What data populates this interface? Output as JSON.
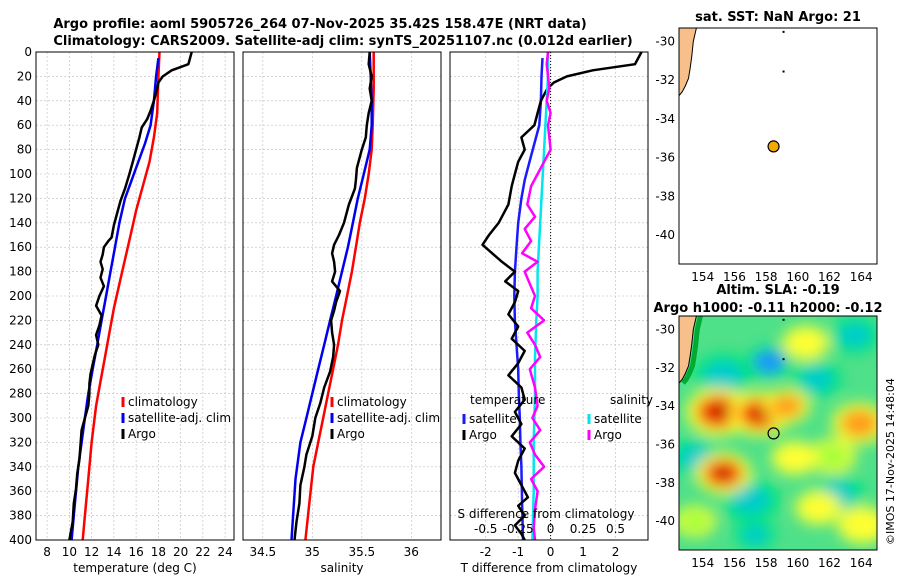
{
  "header": {
    "title_line1": "Argo profile: aoml 5905726_264 07-Nov-2025 35.42S 158.47E (NRT data)",
    "title_line2": "Climatology: CARS2009. Satellite-adj clim: synTS_20251107.nc (0.012d earlier)"
  },
  "colors": {
    "climatology": "#ff0000",
    "satellite": "#0000ee",
    "argo": "#000000",
    "t_satellite": "#1a1aff",
    "s_satellite": "#00e5ee",
    "s_argo": "#ff00ff",
    "land": "#f7c08a",
    "grid": "#bdbdbd"
  },
  "chart_data": [
    {
      "id": "temperature",
      "type": "line",
      "xlabel": "temperature (deg C)",
      "ylabel": "",
      "xlim": [
        7,
        24.8
      ],
      "ylim": [
        400,
        0
      ],
      "xticks": [
        8,
        10,
        12,
        14,
        16,
        18,
        20,
        22,
        24
      ],
      "yticks": [
        0,
        20,
        40,
        60,
        80,
        100,
        120,
        140,
        160,
        180,
        200,
        220,
        240,
        260,
        280,
        300,
        320,
        340,
        360,
        380,
        400
      ],
      "grid": true,
      "legend": [
        "climatology",
        "satellite-adj. clim",
        "Argo"
      ],
      "series": [
        {
          "name": "climatology",
          "color": "#ff0000",
          "x": [
            18.1,
            18.0,
            17.9,
            17.6,
            17.2,
            16.6,
            16.0,
            15.5,
            15.0,
            14.5,
            14.0,
            13.6,
            13.2,
            12.8,
            12.4,
            12.0,
            11.7,
            11.4,
            11.2
          ],
          "y": [
            0,
            20,
            50,
            70,
            90,
            110,
            130,
            150,
            170,
            190,
            210,
            230,
            250,
            270,
            290,
            320,
            350,
            380,
            400
          ]
        },
        {
          "name": "satellite-adj. clim",
          "color": "#0000ee",
          "x": [
            18.0,
            17.8,
            17.6,
            17.3,
            16.8,
            16.2,
            15.6,
            15.0,
            14.5,
            14.1,
            13.7,
            13.3,
            12.9,
            12.5,
            12.1,
            11.7,
            11.4,
            11.1,
            10.8,
            10.5,
            10.2
          ],
          "y": [
            5,
            20,
            40,
            60,
            75,
            90,
            105,
            120,
            140,
            160,
            180,
            200,
            220,
            240,
            260,
            280,
            300,
            320,
            340,
            370,
            400
          ]
        },
        {
          "name": "Argo",
          "color": "#000000",
          "x": [
            21.0,
            20.7,
            19.2,
            18.4,
            18.0,
            17.9,
            17.6,
            17.3,
            17.0,
            16.5,
            16.3,
            16.0,
            15.7,
            15.4,
            15.0,
            14.6,
            14.3,
            14.0,
            13.8,
            13.5,
            13.1,
            13.0,
            12.8,
            13.0,
            12.8,
            13.1,
            12.7,
            12.4,
            12.9,
            12.7,
            12.4,
            12.6,
            12.3,
            12.1,
            11.9,
            11.8,
            11.8,
            11.7,
            11.4,
            11.1,
            11.0,
            10.9,
            10.7,
            10.6,
            10.4,
            10.3,
            10.0
          ],
          "y": [
            0,
            10,
            15,
            20,
            25,
            30,
            40,
            48,
            55,
            62,
            70,
            80,
            90,
            100,
            112,
            122,
            132,
            142,
            152,
            155,
            160,
            166,
            172,
            178,
            185,
            192,
            200,
            208,
            216,
            224,
            232,
            240,
            248,
            256,
            264,
            272,
            280,
            290,
            300,
            310,
            322,
            334,
            346,
            358,
            370,
            385,
            400
          ]
        }
      ]
    },
    {
      "id": "salinity",
      "type": "line",
      "xlabel": "salinity",
      "xlim": [
        34.3,
        36.3
      ],
      "ylim": [
        400,
        0
      ],
      "xticks": [
        34.5,
        35,
        35.5,
        36
      ],
      "xtick_labels": [
        "34.5",
        "35",
        "35.5",
        "36"
      ],
      "grid": true,
      "legend": [
        "climatology",
        "satellite-adj. clim",
        "Argo"
      ],
      "series": [
        {
          "name": "climatology",
          "color": "#ff0000",
          "x": [
            35.62,
            35.62,
            35.61,
            35.6,
            35.57,
            35.53,
            35.48,
            35.44,
            35.4,
            35.35,
            35.3,
            35.26,
            35.21,
            35.16,
            35.11,
            35.06,
            35.01,
            34.97,
            34.93
          ],
          "y": [
            0,
            30,
            60,
            80,
            100,
            120,
            140,
            160,
            180,
            200,
            220,
            240,
            260,
            280,
            300,
            320,
            340,
            370,
            400
          ]
        },
        {
          "name": "satellite-adj. clim",
          "color": "#0000ee",
          "x": [
            35.58,
            35.59,
            35.6,
            35.6,
            35.58,
            35.52,
            35.46,
            35.41,
            35.36,
            35.3,
            35.24,
            35.18,
            35.12,
            35.06,
            35.0,
            34.94,
            34.88,
            34.83,
            34.79
          ],
          "y": [
            0,
            20,
            40,
            60,
            80,
            100,
            120,
            140,
            160,
            180,
            200,
            220,
            240,
            260,
            280,
            300,
            320,
            350,
            400
          ]
        },
        {
          "name": "Argo",
          "color": "#000000",
          "x": [
            35.58,
            35.57,
            35.6,
            35.58,
            35.6,
            35.57,
            35.55,
            35.54,
            35.5,
            35.45,
            35.44,
            35.43,
            35.37,
            35.32,
            35.27,
            35.22,
            35.2,
            35.22,
            35.23,
            35.2,
            35.28,
            35.24,
            35.22,
            35.19,
            35.2,
            35.22,
            35.21,
            35.18,
            35.12,
            35.08,
            35.03,
            35.0,
            34.94,
            34.92,
            34.88,
            34.87,
            34.84,
            34.82
          ],
          "y": [
            0,
            10,
            20,
            30,
            40,
            50,
            60,
            70,
            80,
            95,
            105,
            112,
            125,
            140,
            150,
            158,
            165,
            172,
            180,
            188,
            196,
            205,
            212,
            220,
            230,
            240,
            250,
            262,
            275,
            288,
            300,
            315,
            330,
            340,
            355,
            370,
            385,
            400
          ]
        }
      ]
    },
    {
      "id": "difference",
      "type": "line",
      "xlabel": "T difference from climatology",
      "xlabel_top": "S difference from climatology",
      "xlim": [
        -3.1,
        3.0
      ],
      "ylim": [
        400,
        0
      ],
      "xticks": [
        -2,
        -1,
        0,
        1,
        2
      ],
      "xtick_labels": [
        "-2",
        "-1",
        "0",
        "1",
        "2"
      ],
      "secondary_xlim": [
        -0.775,
        0.75
      ],
      "secondary_xticks": [
        -0.5,
        -0.25,
        0,
        0.25,
        0.5
      ],
      "secondary_xtick_labels": [
        "-0.5",
        "-0.25",
        "0",
        "0.25",
        "0.5"
      ],
      "grid": true,
      "legend_left_title": "temperature",
      "legend_right_title": "salinity",
      "legend_left": [
        "satellite",
        "Argo"
      ],
      "legend_right": [
        "satellite",
        "Argo"
      ],
      "series": [
        {
          "name": "T satellite",
          "color": "#1a1aff",
          "axis": "T",
          "x": [
            -0.25,
            -0.28,
            -0.3,
            -0.35,
            -0.5,
            -0.65,
            -0.8,
            -0.9,
            -1.0,
            -1.05,
            -1.1,
            -1.12,
            -1.1,
            -1.05,
            -1.0,
            -0.98,
            -0.95,
            -0.93,
            -0.9,
            -0.88,
            -0.85
          ],
          "y": [
            5,
            20,
            40,
            60,
            75,
            90,
            105,
            120,
            140,
            160,
            180,
            200,
            220,
            240,
            260,
            280,
            300,
            320,
            340,
            370,
            400
          ]
        },
        {
          "name": "T Argo",
          "color": "#000000",
          "axis": "T",
          "x": [
            2.8,
            2.6,
            1.3,
            0.5,
            0.1,
            -0.1,
            -0.2,
            -0.3,
            -0.4,
            -0.5,
            -0.9,
            -0.8,
            -1.0,
            -1.1,
            -1.2,
            -1.3,
            -1.6,
            -1.9,
            -2.1,
            -1.8,
            -1.5,
            -1.1,
            -1.4,
            -1.0,
            -1.1,
            -1.3,
            -1.0,
            -1.2,
            -0.8,
            -1.0,
            -1.3,
            -0.9,
            -0.8,
            -1.1,
            -0.9,
            -1.2,
            -0.8,
            -1.0,
            -1.1,
            -0.9,
            -0.7,
            -1.0,
            -0.8,
            -1.1,
            -0.9,
            -0.8
          ],
          "y": [
            0,
            10,
            15,
            20,
            25,
            30,
            35,
            40,
            50,
            60,
            70,
            80,
            90,
            100,
            110,
            125,
            140,
            150,
            158,
            165,
            172,
            180,
            188,
            196,
            205,
            215,
            225,
            235,
            245,
            255,
            265,
            275,
            285,
            295,
            305,
            315,
            325,
            335,
            345,
            355,
            365,
            372,
            380,
            388,
            395,
            400
          ]
        },
        {
          "name": "S satellite",
          "color": "#00e5ee",
          "axis": "S",
          "x": [
            -0.02,
            -0.02,
            -0.03,
            -0.04,
            -0.05,
            -0.06,
            -0.07,
            -0.08,
            -0.09,
            -0.1,
            -0.1,
            -0.11,
            -0.12,
            -0.12,
            -0.13,
            -0.13,
            -0.14
          ],
          "y": [
            0,
            20,
            40,
            60,
            80,
            100,
            120,
            140,
            160,
            180,
            200,
            220,
            250,
            280,
            320,
            360,
            400
          ]
        },
        {
          "name": "S Argo",
          "color": "#ff00ff",
          "axis": "S",
          "x": [
            -0.02,
            -0.03,
            -0.02,
            -0.01,
            -0.03,
            0.0,
            -0.02,
            -0.01,
            0.0,
            -0.05,
            -0.1,
            -0.15,
            -0.18,
            -0.12,
            -0.2,
            -0.15,
            -0.22,
            -0.1,
            -0.2,
            -0.16,
            -0.12,
            -0.15,
            -0.05,
            -0.18,
            -0.12,
            -0.08,
            -0.16,
            -0.12,
            -0.1,
            -0.14,
            -0.08,
            -0.16,
            -0.12,
            -0.05,
            -0.15,
            -0.1,
            -0.12,
            -0.13,
            -0.12
          ],
          "y": [
            0,
            10,
            20,
            30,
            40,
            50,
            60,
            70,
            80,
            90,
            100,
            110,
            125,
            135,
            145,
            155,
            165,
            172,
            180,
            190,
            200,
            210,
            220,
            230,
            240,
            250,
            260,
            275,
            290,
            300,
            310,
            320,
            330,
            340,
            350,
            360,
            375,
            390,
            400
          ]
        }
      ]
    },
    {
      "id": "sst_map",
      "type": "scatter",
      "title": "sat. SST: NaN Argo: 21",
      "xlim": [
        152.5,
        165
      ],
      "ylim": [
        -41.5,
        -29.3
      ],
      "xticks": [
        154,
        156,
        158,
        160,
        162,
        164
      ],
      "yticks": [
        -30,
        -32,
        -34,
        -36,
        -38,
        -40
      ],
      "float_position": [
        158.47,
        -35.42
      ],
      "float_color": "#f5a800",
      "coast_lon": [
        153.6,
        153.4,
        153.3,
        153.2,
        153.1,
        152.9,
        152.7,
        152.5
      ],
      "coast_lat": [
        -29.3,
        -30.0,
        -30.8,
        -31.4,
        -31.9,
        -32.3,
        -32.6,
        -32.8
      ]
    },
    {
      "id": "sla_map",
      "type": "heatmap",
      "title_line1": "Altim. SLA: -0.19",
      "title_line2": "Argo h1000: -0.11 h2000: -0.12",
      "xlim": [
        152.5,
        165
      ],
      "ylim": [
        -41.5,
        -29.3
      ],
      "xticks": [
        154,
        156,
        158,
        160,
        162,
        164
      ],
      "yticks": [
        -30,
        -32,
        -34,
        -36,
        -38,
        -40
      ],
      "float_position": [
        158.47,
        -35.42
      ],
      "colormap": [
        "#1e8fff",
        "#00cccc",
        "#00e676",
        "#9cff3a",
        "#ffff33",
        "#ff9a1a",
        "#ff3300",
        "#b33000"
      ],
      "features": [
        {
          "lon": 158.2,
          "lat": -31.7,
          "value": -1.0,
          "size": 1.0
        },
        {
          "lon": 155.3,
          "lat": -32.4,
          "value": -0.6,
          "size": 1.3
        },
        {
          "lon": 161.2,
          "lat": -32.6,
          "value": -0.5,
          "size": 1.1
        },
        {
          "lon": 163.6,
          "lat": -30.3,
          "value": -0.45,
          "size": 1.1
        },
        {
          "lon": 153.6,
          "lat": -36.7,
          "value": -0.5,
          "size": 1.2
        },
        {
          "lon": 157.0,
          "lat": -38.9,
          "value": -0.55,
          "size": 1.3
        },
        {
          "lon": 162.5,
          "lat": -38.6,
          "value": -0.45,
          "size": 1.2
        },
        {
          "lon": 157.3,
          "lat": -40.7,
          "value": -0.4,
          "size": 0.9
        },
        {
          "lon": 155.0,
          "lat": -34.3,
          "value": 1.0,
          "size": 1.4
        },
        {
          "lon": 157.6,
          "lat": -34.4,
          "value": 0.9,
          "size": 1.3
        },
        {
          "lon": 159.3,
          "lat": -34.0,
          "value": 0.7,
          "size": 1.0
        },
        {
          "lon": 155.3,
          "lat": -37.5,
          "value": 0.85,
          "size": 1.2
        },
        {
          "lon": 163.9,
          "lat": -34.9,
          "value": 0.65,
          "size": 1.2
        },
        {
          "lon": 161.3,
          "lat": -39.3,
          "value": 0.6,
          "size": 1.0
        },
        {
          "lon": 164.1,
          "lat": -40.2,
          "value": 0.55,
          "size": 1.1
        },
        {
          "lon": 160.5,
          "lat": -30.7,
          "value": 0.5,
          "size": 1.0
        },
        {
          "lon": 159.8,
          "lat": -36.7,
          "value": 0.45,
          "size": 1.0
        },
        {
          "lon": 153.5,
          "lat": -40.0,
          "value": 0.3,
          "size": 0.9
        },
        {
          "lon": 162.2,
          "lat": -36.6,
          "value": 0.35,
          "size": 1.0
        }
      ]
    }
  ],
  "timestamp": "©IMOS 17-Nov-2025 14:48:04"
}
